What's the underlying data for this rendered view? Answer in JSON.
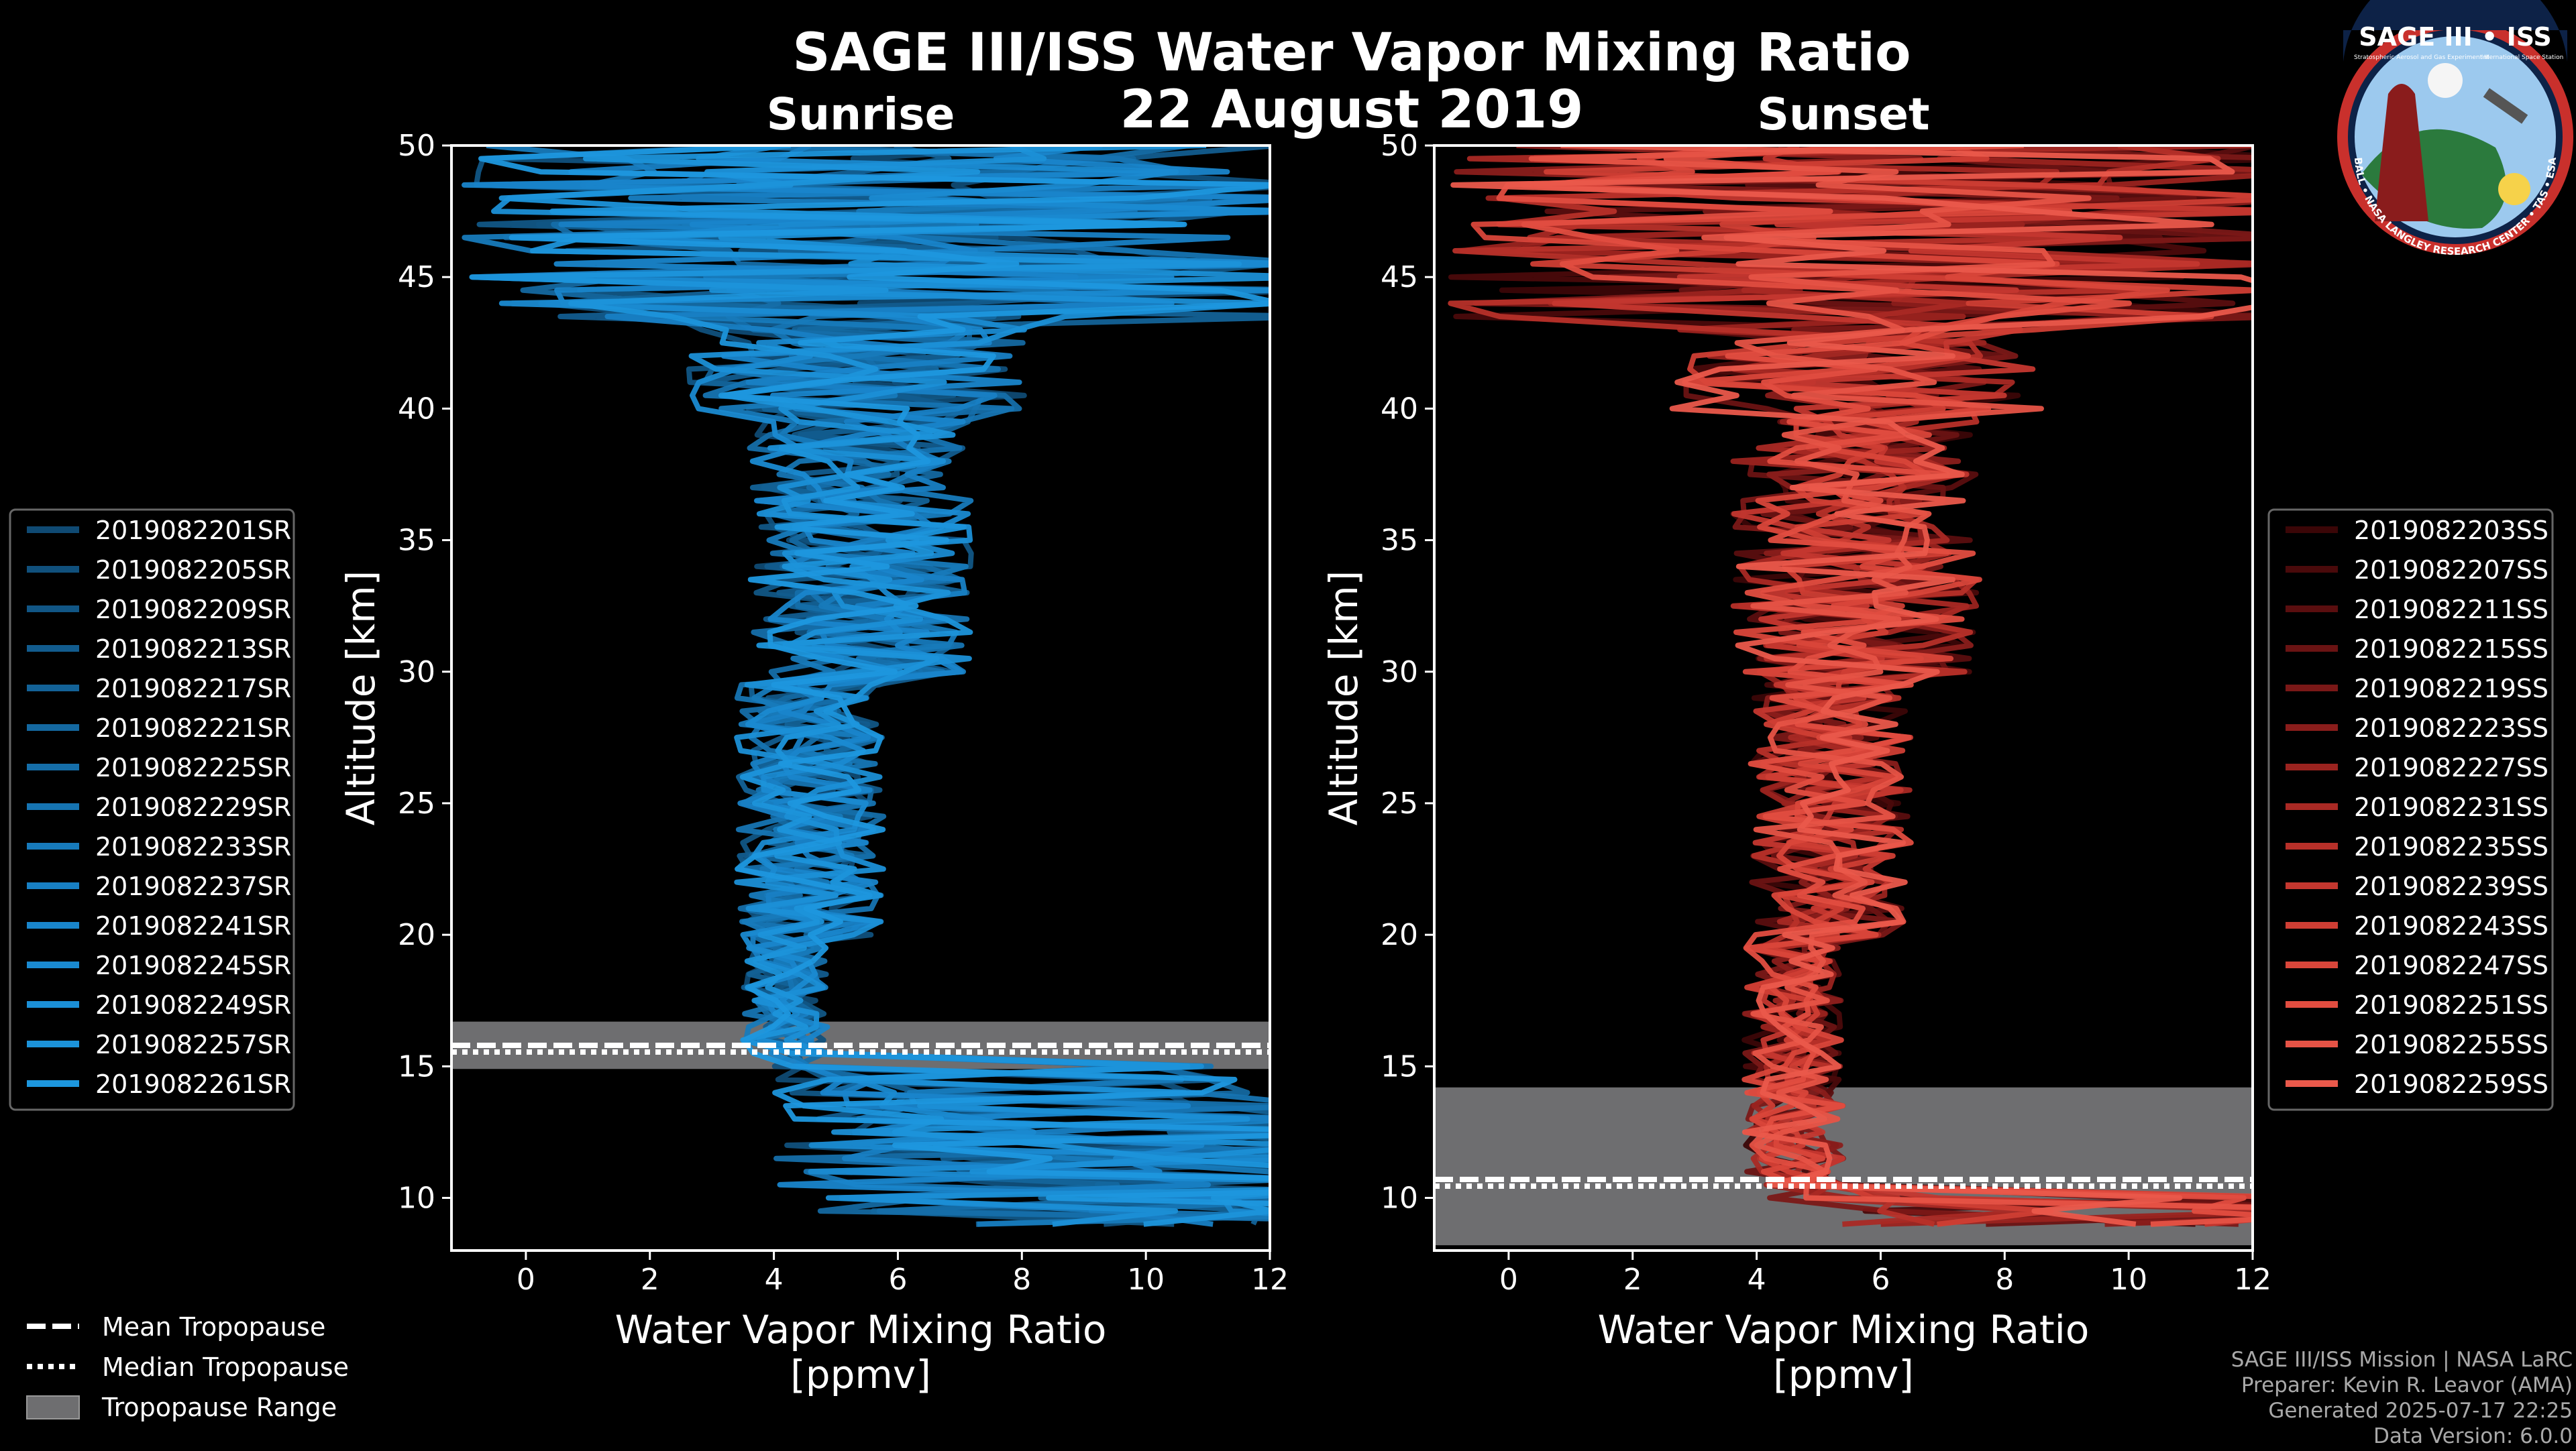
{
  "title": "SAGE III/ISS Water Vapor Mixing Ratio",
  "date": "22 August 2019",
  "logo": {
    "text": "SAGE III • ISS",
    "sub_left": "Stratospheric Aerosol and Gas Experiment III",
    "sub_right": "International Space Station",
    "ring_text": "BALL • NASA LANGLEY RESEARCH CENTER • TAS • ESA"
  },
  "credits": [
    "SAGE III/ISS Mission | NASA LaRC",
    "Preparer: Kevin R. Leavor (AMA)",
    "Generated 2025-07-17 22:25",
    "Data Version: 6.0.0"
  ],
  "bottom_legend": [
    "Mean Tropopause",
    "Median Tropopause",
    "Tropopause Range"
  ],
  "colors": {
    "sunrise": "#1a8fd6",
    "sunset": "#e8574a",
    "tropo_fill": "#6e6e70"
  },
  "chart_data": [
    {
      "type": "line",
      "title": "Sunrise",
      "xlabel": "Water Vapor Mixing Ratio",
      "xlabel_units": "[ppmv]",
      "ylabel": "Altitude [km]",
      "xlim": [
        -1.2,
        12
      ],
      "ylim": [
        8,
        50
      ],
      "xticks": [
        0,
        2,
        4,
        6,
        8,
        10,
        12
      ],
      "yticks": [
        10,
        15,
        20,
        25,
        30,
        35,
        40,
        45,
        50
      ],
      "tropopause": {
        "mean": 15.8,
        "median": 15.8,
        "range": [
          14.9,
          16.7
        ]
      },
      "legend_position": "left",
      "series": [
        {
          "name": "2019082201SR",
          "color": "#0f4a73"
        },
        {
          "name": "2019082205SR",
          "color": "#10507c"
        },
        {
          "name": "2019082209SR",
          "color": "#115685"
        },
        {
          "name": "2019082213SR",
          "color": "#125c8e"
        },
        {
          "name": "2019082217SR",
          "color": "#136297"
        },
        {
          "name": "2019082221SR",
          "color": "#1468a0"
        },
        {
          "name": "2019082225SR",
          "color": "#156ea9"
        },
        {
          "name": "2019082229SR",
          "color": "#1674b2"
        },
        {
          "name": "2019082233SR",
          "color": "#177abb"
        },
        {
          "name": "2019082237SR",
          "color": "#1880c4"
        },
        {
          "name": "2019082241SR",
          "color": "#1985cb"
        },
        {
          "name": "2019082245SR",
          "color": "#1a8ad1"
        },
        {
          "name": "2019082249SR",
          "color": "#1b8fd6"
        },
        {
          "name": "2019082257SR",
          "color": "#1c93da"
        },
        {
          "name": "2019082261SR",
          "color": "#1d97de"
        }
      ]
    },
    {
      "type": "line",
      "title": "Sunset",
      "xlabel": "Water Vapor Mixing Ratio",
      "xlabel_units": "[ppmv]",
      "ylabel": "Altitude [km]",
      "xlim": [
        -1.2,
        12
      ],
      "ylim": [
        8,
        50
      ],
      "xticks": [
        0,
        2,
        4,
        6,
        8,
        10,
        12
      ],
      "yticks": [
        10,
        15,
        20,
        25,
        30,
        35,
        40,
        45,
        50
      ],
      "tropopause": {
        "mean": 10.7,
        "median": 10.7,
        "range": [
          8.2,
          14.2
        ]
      },
      "legend_position": "right",
      "series": [
        {
          "name": "2019082203SS",
          "color": "#3b0607"
        },
        {
          "name": "2019082207SS",
          "color": "#4a0a0b"
        },
        {
          "name": "2019082211SS",
          "color": "#5a0e0f"
        },
        {
          "name": "2019082215SS",
          "color": "#6a1313"
        },
        {
          "name": "2019082219SS",
          "color": "#7a1817"
        },
        {
          "name": "2019082223SS",
          "color": "#8a1d1b"
        },
        {
          "name": "2019082227SS",
          "color": "#9a231f"
        },
        {
          "name": "2019082231SS",
          "color": "#a92924"
        },
        {
          "name": "2019082235SS",
          "color": "#b73029"
        },
        {
          "name": "2019082239SS",
          "color": "#c4372f"
        },
        {
          "name": "2019082243SS",
          "color": "#cf3e34"
        },
        {
          "name": "2019082247SS",
          "color": "#d9463a"
        },
        {
          "name": "2019082251SS",
          "color": "#e14d40"
        },
        {
          "name": "2019082255SS",
          "color": "#e65346"
        },
        {
          "name": "2019082259SS",
          "color": "#ea594b"
        }
      ]
    }
  ]
}
